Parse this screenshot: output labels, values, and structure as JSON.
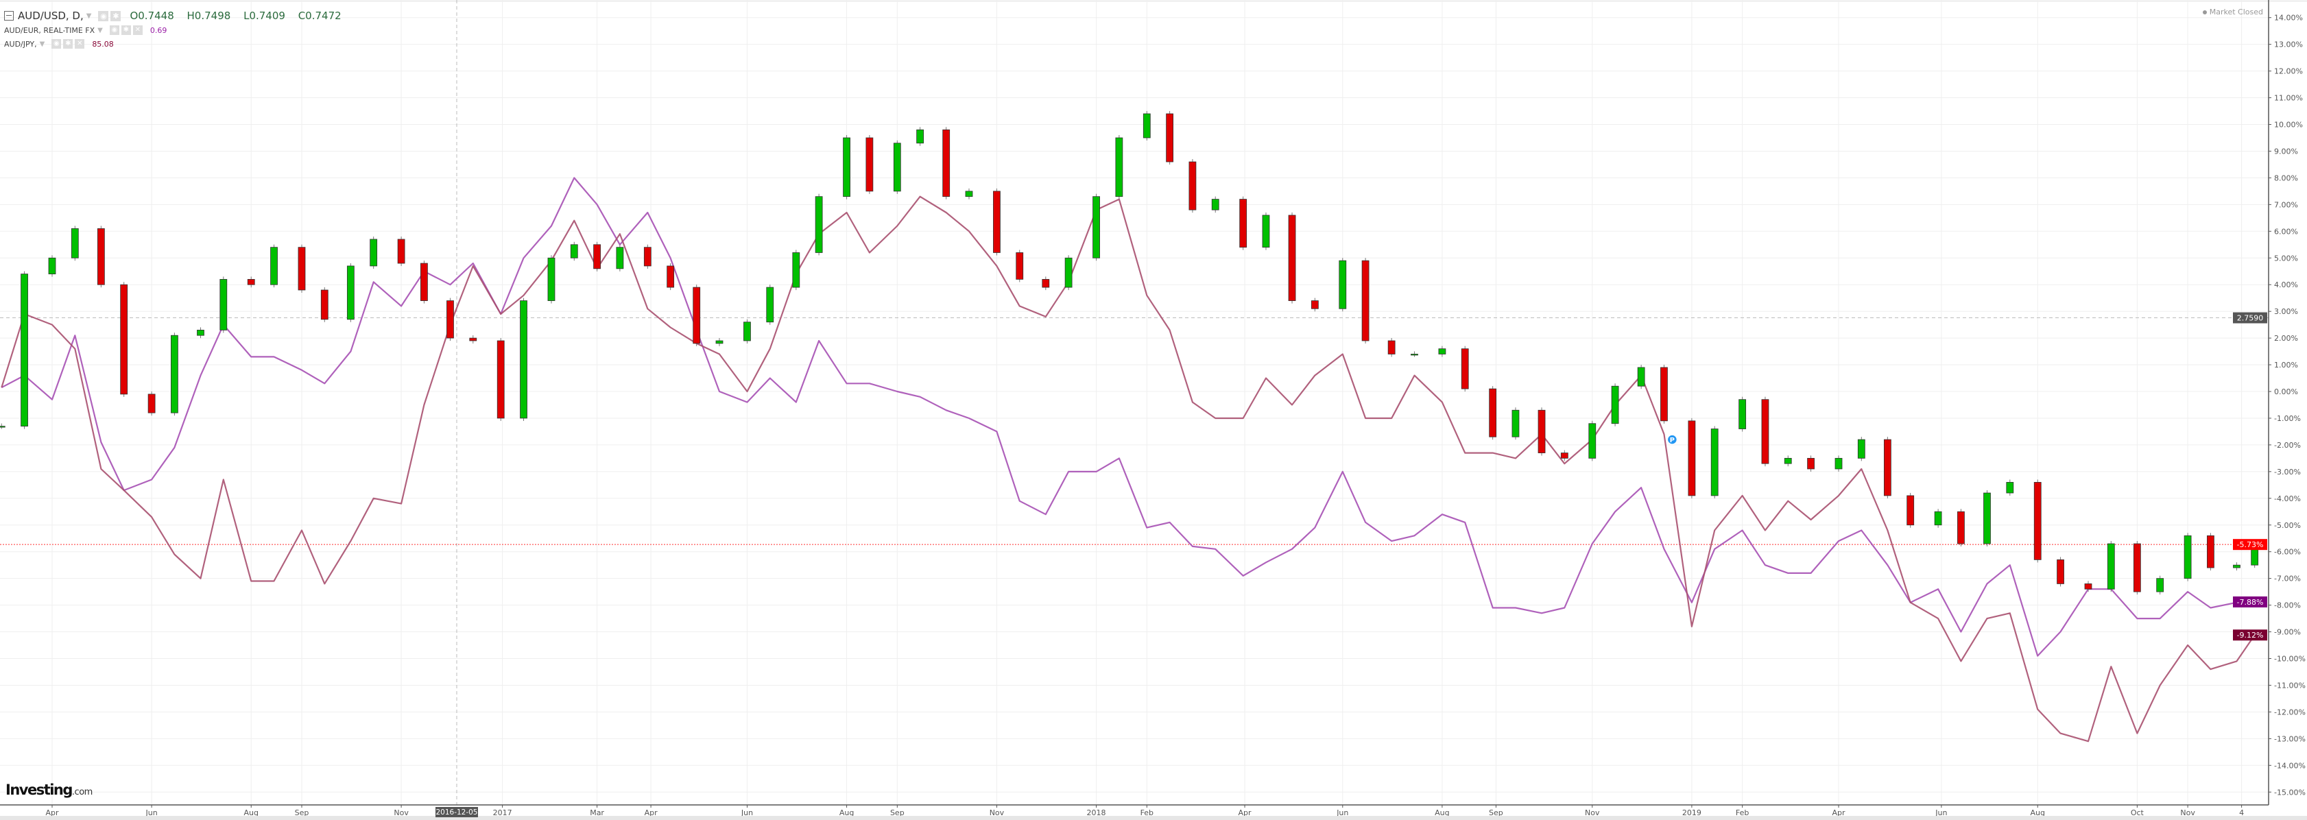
{
  "legend": {
    "main": {
      "symbol": "AUD/USD, D,",
      "open": "O0.7448",
      "high": "H0.7498",
      "low": "L0.7409",
      "close": "C0.7472"
    },
    "eur": {
      "symbol": "AUD/EUR, REAL-TIME FX",
      "value": "0.69"
    },
    "jpy": {
      "symbol": "AUD/JPY,",
      "value": "85.08"
    }
  },
  "market_status": "Market Closed",
  "logo": {
    "brand": "Investing",
    "suffix": ".com"
  },
  "icons": [
    "collapse-icon",
    "chevron-down-icon",
    "eye-icon",
    "gear-icon",
    "close-icon",
    "event-marker-icon"
  ],
  "chart_data": {
    "type": "candlestick+line",
    "yaxis": {
      "ylim": [
        -15.5,
        14.5
      ],
      "unit": "%",
      "position": "right",
      "ticks": [
        "14.00%",
        "13.00%",
        "12.00%",
        "11.00%",
        "10.00%",
        "9.00%",
        "8.00%",
        "7.00%",
        "6.00%",
        "5.00%",
        "4.00%",
        "3.00%",
        "2.00%",
        "1.00%",
        "0.00%",
        "-1.00%",
        "-2.00%",
        "-3.00%",
        "-4.00%",
        "-5.00%",
        "-6.00%",
        "-7.00%",
        "-8.00%",
        "-9.00%",
        "-10.00%",
        "-11.00%",
        "-12.00%",
        "-13.00%",
        "-14.00%",
        "-15.00%"
      ]
    },
    "grid": true,
    "xaxis": {
      "ticks": [
        {
          "label": "Apr",
          "date": "2016-04-01"
        },
        {
          "label": "Jun",
          "date": "2016-06-01"
        },
        {
          "label": "Aug",
          "date": "2016-08-01"
        },
        {
          "label": "Sep",
          "date": "2016-09-01"
        },
        {
          "label": "Nov",
          "date": "2016-11-01"
        },
        {
          "label": "2017",
          "date": "2017-01-02"
        },
        {
          "label": "Mar",
          "date": "2017-03-01"
        },
        {
          "label": "Apr",
          "date": "2017-04-03"
        },
        {
          "label": "Jun",
          "date": "2017-06-01"
        },
        {
          "label": "Aug",
          "date": "2017-08-01"
        },
        {
          "label": "Sep",
          "date": "2017-09-01"
        },
        {
          "label": "Nov",
          "date": "2017-11-01"
        },
        {
          "label": "2018",
          "date": "2018-01-01"
        },
        {
          "label": "Feb",
          "date": "2018-02-01"
        },
        {
          "label": "Apr",
          "date": "2018-04-02"
        },
        {
          "label": "Jun",
          "date": "2018-06-01"
        },
        {
          "label": "Aug",
          "date": "2018-08-01"
        },
        {
          "label": "Sep",
          "date": "2018-09-03"
        },
        {
          "label": "Nov",
          "date": "2018-11-01"
        },
        {
          "label": "2019",
          "date": "2019-01-01"
        },
        {
          "label": "Feb",
          "date": "2019-02-01"
        },
        {
          "label": "Apr",
          "date": "2019-04-01"
        },
        {
          "label": "Jun",
          "date": "2019-06-03"
        },
        {
          "label": "Aug",
          "date": "2019-08-01"
        },
        {
          "label": "Oct",
          "date": "2019-10-01"
        },
        {
          "label": "Nov",
          "date": "2019-11-01"
        },
        {
          "label": "4",
          "date": "2019-12-04"
        }
      ]
    },
    "crosshair": {
      "date_label": "2016-12-05",
      "date": "2016-12-05",
      "value_label": "2.7590",
      "value": 2.759
    },
    "x": [
      "2016-03-01",
      "2016-03-15",
      "2016-04-01",
      "2016-04-15",
      "2016-05-01",
      "2016-05-15",
      "2016-06-01",
      "2016-06-15",
      "2016-07-01",
      "2016-07-15",
      "2016-08-01",
      "2016-08-15",
      "2016-09-01",
      "2016-09-15",
      "2016-10-01",
      "2016-10-15",
      "2016-11-01",
      "2016-11-15",
      "2016-12-01",
      "2016-12-15",
      "2017-01-01",
      "2017-01-15",
      "2017-02-01",
      "2017-02-15",
      "2017-03-01",
      "2017-03-15",
      "2017-04-01",
      "2017-04-15",
      "2017-05-01",
      "2017-05-15",
      "2017-06-01",
      "2017-06-15",
      "2017-07-01",
      "2017-07-15",
      "2017-08-01",
      "2017-08-15",
      "2017-09-01",
      "2017-09-15",
      "2017-10-01",
      "2017-10-15",
      "2017-11-01",
      "2017-11-15",
      "2017-12-01",
      "2017-12-15",
      "2018-01-01",
      "2018-01-15",
      "2018-02-01",
      "2018-02-15",
      "2018-03-01",
      "2018-03-15",
      "2018-04-01",
      "2018-04-15",
      "2018-05-01",
      "2018-05-15",
      "2018-06-01",
      "2018-06-15",
      "2018-07-01",
      "2018-07-15",
      "2018-08-01",
      "2018-08-15",
      "2018-09-01",
      "2018-09-15",
      "2018-10-01",
      "2018-10-15",
      "2018-11-01",
      "2018-11-15",
      "2018-12-01",
      "2018-12-15",
      "2019-01-01",
      "2019-01-15",
      "2019-02-01",
      "2019-02-15",
      "2019-03-01",
      "2019-03-15",
      "2019-04-01",
      "2019-04-15",
      "2019-05-01",
      "2019-05-15",
      "2019-06-01",
      "2019-06-15",
      "2019-07-01",
      "2019-07-15",
      "2019-08-01",
      "2019-08-15",
      "2019-09-01",
      "2019-09-15",
      "2019-10-01",
      "2019-10-15",
      "2019-11-01",
      "2019-11-15",
      "2019-12-01",
      "2019-12-12"
    ],
    "series": [
      {
        "name": "AUD/USD",
        "style": "candles",
        "color_up": "#00c000",
        "color_down": "#e00000",
        "last_label": "-5.73%",
        "label_color": "#ff0000",
        "values": [
          -1.3,
          4.4,
          5.0,
          6.1,
          4.0,
          -0.1,
          -0.8,
          2.1,
          2.3,
          4.2,
          4.0,
          5.4,
          3.8,
          2.7,
          4.7,
          5.7,
          4.8,
          3.4,
          2.0,
          1.9,
          -1.0,
          3.4,
          5.0,
          5.5,
          4.6,
          5.4,
          4.7,
          3.9,
          1.8,
          1.9,
          2.6,
          3.9,
          5.2,
          7.3,
          9.5,
          7.5,
          9.3,
          9.8,
          7.3,
          7.5,
          5.2,
          4.2,
          3.9,
          5.0,
          7.3,
          9.5,
          10.4,
          8.6,
          6.8,
          7.2,
          5.4,
          6.6,
          3.4,
          3.1,
          4.9,
          1.9,
          1.4,
          1.4,
          1.6,
          0.1,
          -1.7,
          -0.7,
          -2.3,
          -2.5,
          -1.2,
          0.2,
          0.9,
          -1.1,
          -3.9,
          -1.4,
          -0.3,
          -2.7,
          -2.5,
          -2.9,
          -2.5,
          -1.8,
          -3.9,
          -5.0,
          -4.5,
          -5.7,
          -3.8,
          -3.4,
          -6.3,
          -7.2,
          -7.4,
          -5.7,
          -7.5,
          -7.0,
          -5.4,
          -6.6,
          -6.5,
          -5.73
        ]
      },
      {
        "name": "AUD/EUR, REAL-TIME FX",
        "style": "line",
        "color": "#a650b4",
        "last_label": "-7.88%",
        "label_color": "#800080",
        "values": [
          0.15,
          0.6,
          -0.3,
          2.1,
          -1.9,
          -3.7,
          -3.3,
          -2.1,
          0.6,
          2.5,
          1.3,
          1.3,
          0.8,
          0.3,
          1.5,
          4.1,
          3.2,
          4.5,
          4.0,
          4.8,
          2.9,
          5.0,
          6.2,
          8.0,
          7.0,
          5.5,
          6.7,
          5.0,
          2.3,
          0,
          -0.4,
          0.5,
          -0.4,
          1.9,
          0.3,
          0.3,
          0,
          -0.2,
          -0.7,
          -1.0,
          -1.5,
          -4.1,
          -4.6,
          -3.0,
          -3.0,
          -2.5,
          -5.1,
          -4.9,
          -5.8,
          -5.9,
          -6.9,
          -6.4,
          -5.9,
          -5.1,
          -3.0,
          -4.9,
          -5.6,
          -5.4,
          -4.6,
          -4.9,
          -8.1,
          -8.1,
          -8.3,
          -8.1,
          -5.7,
          -4.5,
          -3.6,
          -5.9,
          -7.9,
          -5.9,
          -5.2,
          -6.5,
          -6.8,
          -6.8,
          -5.6,
          -5.2,
          -6.5,
          -7.9,
          -7.4,
          -9.0,
          -7.2,
          -6.5,
          -9.9,
          -9.0,
          -7.4,
          -7.4,
          -8.5,
          -8.5,
          -7.5,
          -8.1,
          -7.9,
          -7.88
        ]
      },
      {
        "name": "AUD/JPY",
        "style": "line",
        "color": "#a8506f",
        "last_label": "-9.12%",
        "label_color": "#7a0030",
        "values": [
          0.15,
          2.9,
          2.5,
          1.6,
          -2.9,
          -3.7,
          -4.7,
          -6.1,
          -7.0,
          -3.3,
          -7.1,
          -7.1,
          -5.2,
          -7.2,
          -5.6,
          -4.0,
          -4.2,
          -0.5,
          2.5,
          4.7,
          2.9,
          3.6,
          4.9,
          6.4,
          4.6,
          5.9,
          3.1,
          2.4,
          1.8,
          1.4,
          0,
          1.6,
          4.4,
          5.9,
          6.7,
          5.2,
          6.2,
          7.3,
          6.7,
          6.0,
          4.7,
          3.2,
          2.8,
          4.1,
          6.8,
          7.2,
          3.6,
          2.3,
          -0.4,
          -1.0,
          -1.0,
          0.5,
          -0.5,
          0.6,
          1.4,
          -1.0,
          -1.0,
          0.6,
          -0.4,
          -2.3,
          -2.3,
          -2.5,
          -1.6,
          -2.7,
          -1.8,
          -0.5,
          0.6,
          -1.6,
          -8.8,
          -5.2,
          -3.9,
          -5.2,
          -4.1,
          -4.8,
          -3.9,
          -2.9,
          -5.2,
          -7.9,
          -8.5,
          -10.1,
          -8.5,
          -8.3,
          -11.9,
          -12.8,
          -13.1,
          -10.3,
          -12.8,
          -11.0,
          -9.5,
          -10.4,
          -10.1,
          -9.12
        ]
      }
    ],
    "markers": [
      {
        "label": "P",
        "date": "2018-12-20",
        "value": -1.8,
        "color": "#2196f3"
      }
    ]
  }
}
